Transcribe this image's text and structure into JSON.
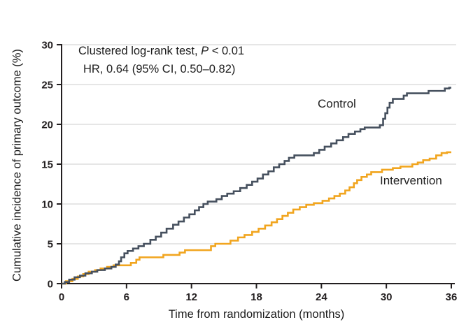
{
  "chart_data": {
    "type": "line",
    "subtype": "step",
    "title": "",
    "xlabel": "Time from randomization (months)",
    "ylabel": "Cumulative incidence of primary outcome (%)",
    "xlim": [
      0,
      36
    ],
    "ylim": [
      0,
      30
    ],
    "xticks": [
      0,
      6,
      12,
      18,
      24,
      30,
      36
    ],
    "yticks": [
      0,
      5,
      10,
      15,
      20,
      25,
      30
    ],
    "grid": "horizontal",
    "grid_color": "#d8d8d8",
    "axis_color": "#231f20",
    "legend_position": "inline-labels",
    "annotation": {
      "line1_prefix": "Clustered log-rank test, ",
      "line1_italic": "P",
      "line1_suffix": " < 0.01",
      "line2": "HR, 0.64 (95% CI, 0.50–0.82)"
    },
    "series": [
      {
        "name": "Control",
        "color": "#46505e",
        "points": [
          [
            0,
            0
          ],
          [
            0.3,
            0.2
          ],
          [
            0.7,
            0.5
          ],
          [
            1.2,
            0.8
          ],
          [
            1.7,
            1.0
          ],
          [
            2.2,
            1.3
          ],
          [
            2.8,
            1.5
          ],
          [
            3.3,
            1.7
          ],
          [
            4.0,
            1.9
          ],
          [
            4.6,
            2.1
          ],
          [
            5.0,
            2.4
          ],
          [
            5.3,
            2.8
          ],
          [
            5.5,
            3.3
          ],
          [
            5.8,
            3.8
          ],
          [
            6.1,
            4.1
          ],
          [
            6.6,
            4.4
          ],
          [
            7.1,
            4.7
          ],
          [
            7.6,
            5.0
          ],
          [
            8.2,
            5.5
          ],
          [
            8.7,
            5.9
          ],
          [
            9.2,
            6.4
          ],
          [
            9.7,
            6.9
          ],
          [
            10.3,
            7.4
          ],
          [
            10.8,
            7.8
          ],
          [
            11.3,
            8.3
          ],
          [
            11.8,
            8.7
          ],
          [
            12.3,
            9.2
          ],
          [
            12.7,
            9.6
          ],
          [
            13.1,
            10.0
          ],
          [
            13.5,
            10.3
          ],
          [
            14.3,
            10.6
          ],
          [
            14.8,
            11.0
          ],
          [
            15.3,
            11.3
          ],
          [
            15.9,
            11.6
          ],
          [
            16.5,
            12.0
          ],
          [
            17.1,
            12.4
          ],
          [
            17.6,
            12.8
          ],
          [
            18.1,
            13.2
          ],
          [
            18.6,
            13.7
          ],
          [
            19.1,
            14.1
          ],
          [
            19.6,
            14.6
          ],
          [
            20.1,
            15.0
          ],
          [
            20.6,
            15.4
          ],
          [
            21.0,
            15.8
          ],
          [
            21.5,
            16.1
          ],
          [
            23.3,
            16.4
          ],
          [
            23.8,
            16.8
          ],
          [
            24.3,
            17.2
          ],
          [
            24.9,
            17.6
          ],
          [
            25.4,
            18.0
          ],
          [
            26.0,
            18.4
          ],
          [
            26.5,
            18.8
          ],
          [
            27.1,
            19.1
          ],
          [
            27.6,
            19.4
          ],
          [
            28.0,
            19.6
          ],
          [
            29.4,
            19.9
          ],
          [
            29.7,
            20.7
          ],
          [
            29.9,
            21.4
          ],
          [
            30.1,
            22.1
          ],
          [
            30.3,
            22.7
          ],
          [
            30.6,
            23.2
          ],
          [
            31.6,
            23.6
          ],
          [
            31.9,
            23.9
          ],
          [
            33.9,
            24.2
          ],
          [
            35.4,
            24.5
          ],
          [
            35.8,
            24.6
          ],
          [
            36,
            24.6
          ]
        ]
      },
      {
        "name": "Intervention",
        "color": "#f1a51f",
        "points": [
          [
            0,
            0
          ],
          [
            0.4,
            0.3
          ],
          [
            1.0,
            0.6
          ],
          [
            1.5,
            0.9
          ],
          [
            2.0,
            1.2
          ],
          [
            2.5,
            1.5
          ],
          [
            3.1,
            1.7
          ],
          [
            3.6,
            1.9
          ],
          [
            4.2,
            2.1
          ],
          [
            4.8,
            2.3
          ],
          [
            6.4,
            2.6
          ],
          [
            6.9,
            3.0
          ],
          [
            7.2,
            3.3
          ],
          [
            9.4,
            3.6
          ],
          [
            10.9,
            3.9
          ],
          [
            11.4,
            4.2
          ],
          [
            13.8,
            4.7
          ],
          [
            14.2,
            5.0
          ],
          [
            15.6,
            5.4
          ],
          [
            16.3,
            5.8
          ],
          [
            16.9,
            6.1
          ],
          [
            17.6,
            6.5
          ],
          [
            18.2,
            6.9
          ],
          [
            18.8,
            7.3
          ],
          [
            19.4,
            7.7
          ],
          [
            19.9,
            8.1
          ],
          [
            20.4,
            8.5
          ],
          [
            20.9,
            8.9
          ],
          [
            21.4,
            9.3
          ],
          [
            22.0,
            9.6
          ],
          [
            22.6,
            9.9
          ],
          [
            23.3,
            10.1
          ],
          [
            24.1,
            10.4
          ],
          [
            24.7,
            10.7
          ],
          [
            25.2,
            11.0
          ],
          [
            25.7,
            11.3
          ],
          [
            26.2,
            11.7
          ],
          [
            26.6,
            12.1
          ],
          [
            27.0,
            12.6
          ],
          [
            27.3,
            13.0
          ],
          [
            27.7,
            13.4
          ],
          [
            28.2,
            13.7
          ],
          [
            28.6,
            14.0
          ],
          [
            29.6,
            14.3
          ],
          [
            30.6,
            14.5
          ],
          [
            31.3,
            14.7
          ],
          [
            32.4,
            15.0
          ],
          [
            32.9,
            15.2
          ],
          [
            33.4,
            15.5
          ],
          [
            34.0,
            15.7
          ],
          [
            34.6,
            16.1
          ],
          [
            35.1,
            16.4
          ],
          [
            35.6,
            16.5
          ],
          [
            36,
            16.5
          ]
        ]
      }
    ]
  }
}
